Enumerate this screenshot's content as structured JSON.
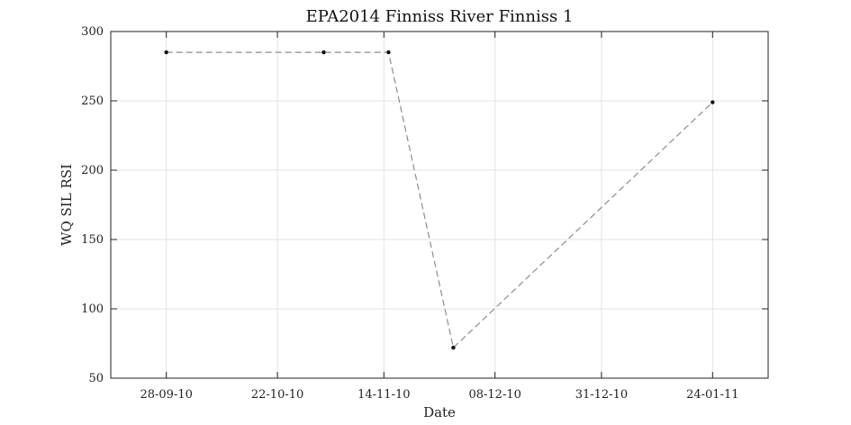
{
  "chart_data": {
    "type": "line",
    "title": "EPA2014 Finniss River Finniss 1",
    "xlabel": "Date",
    "ylabel": "WQ SIL RSI",
    "x_ticks": [
      "28-09-10",
      "22-10-10",
      "14-11-10",
      "08-12-10",
      "31-12-10",
      "24-01-11"
    ],
    "y_ticks": [
      "300",
      "250",
      "200",
      "150",
      "100",
      "50"
    ],
    "xlim": [
      "2010-09-16",
      "2011-02-05"
    ],
    "ylim": [
      50,
      300
    ],
    "grid": true,
    "series": [
      {
        "points": [
          {
            "x": "2010-09-28",
            "y": 285
          },
          {
            "x": "2010-11-01",
            "y": 285
          },
          {
            "x": "2010-11-15",
            "y": 285
          },
          {
            "x": "2010-11-29",
            "y": 72
          },
          {
            "x": "2011-01-24",
            "y": 249
          }
        ]
      }
    ],
    "colors": {
      "line": "#8c8c8c",
      "marker": "#111111",
      "grid": "#e3e3e3",
      "axes": "#222222"
    }
  }
}
